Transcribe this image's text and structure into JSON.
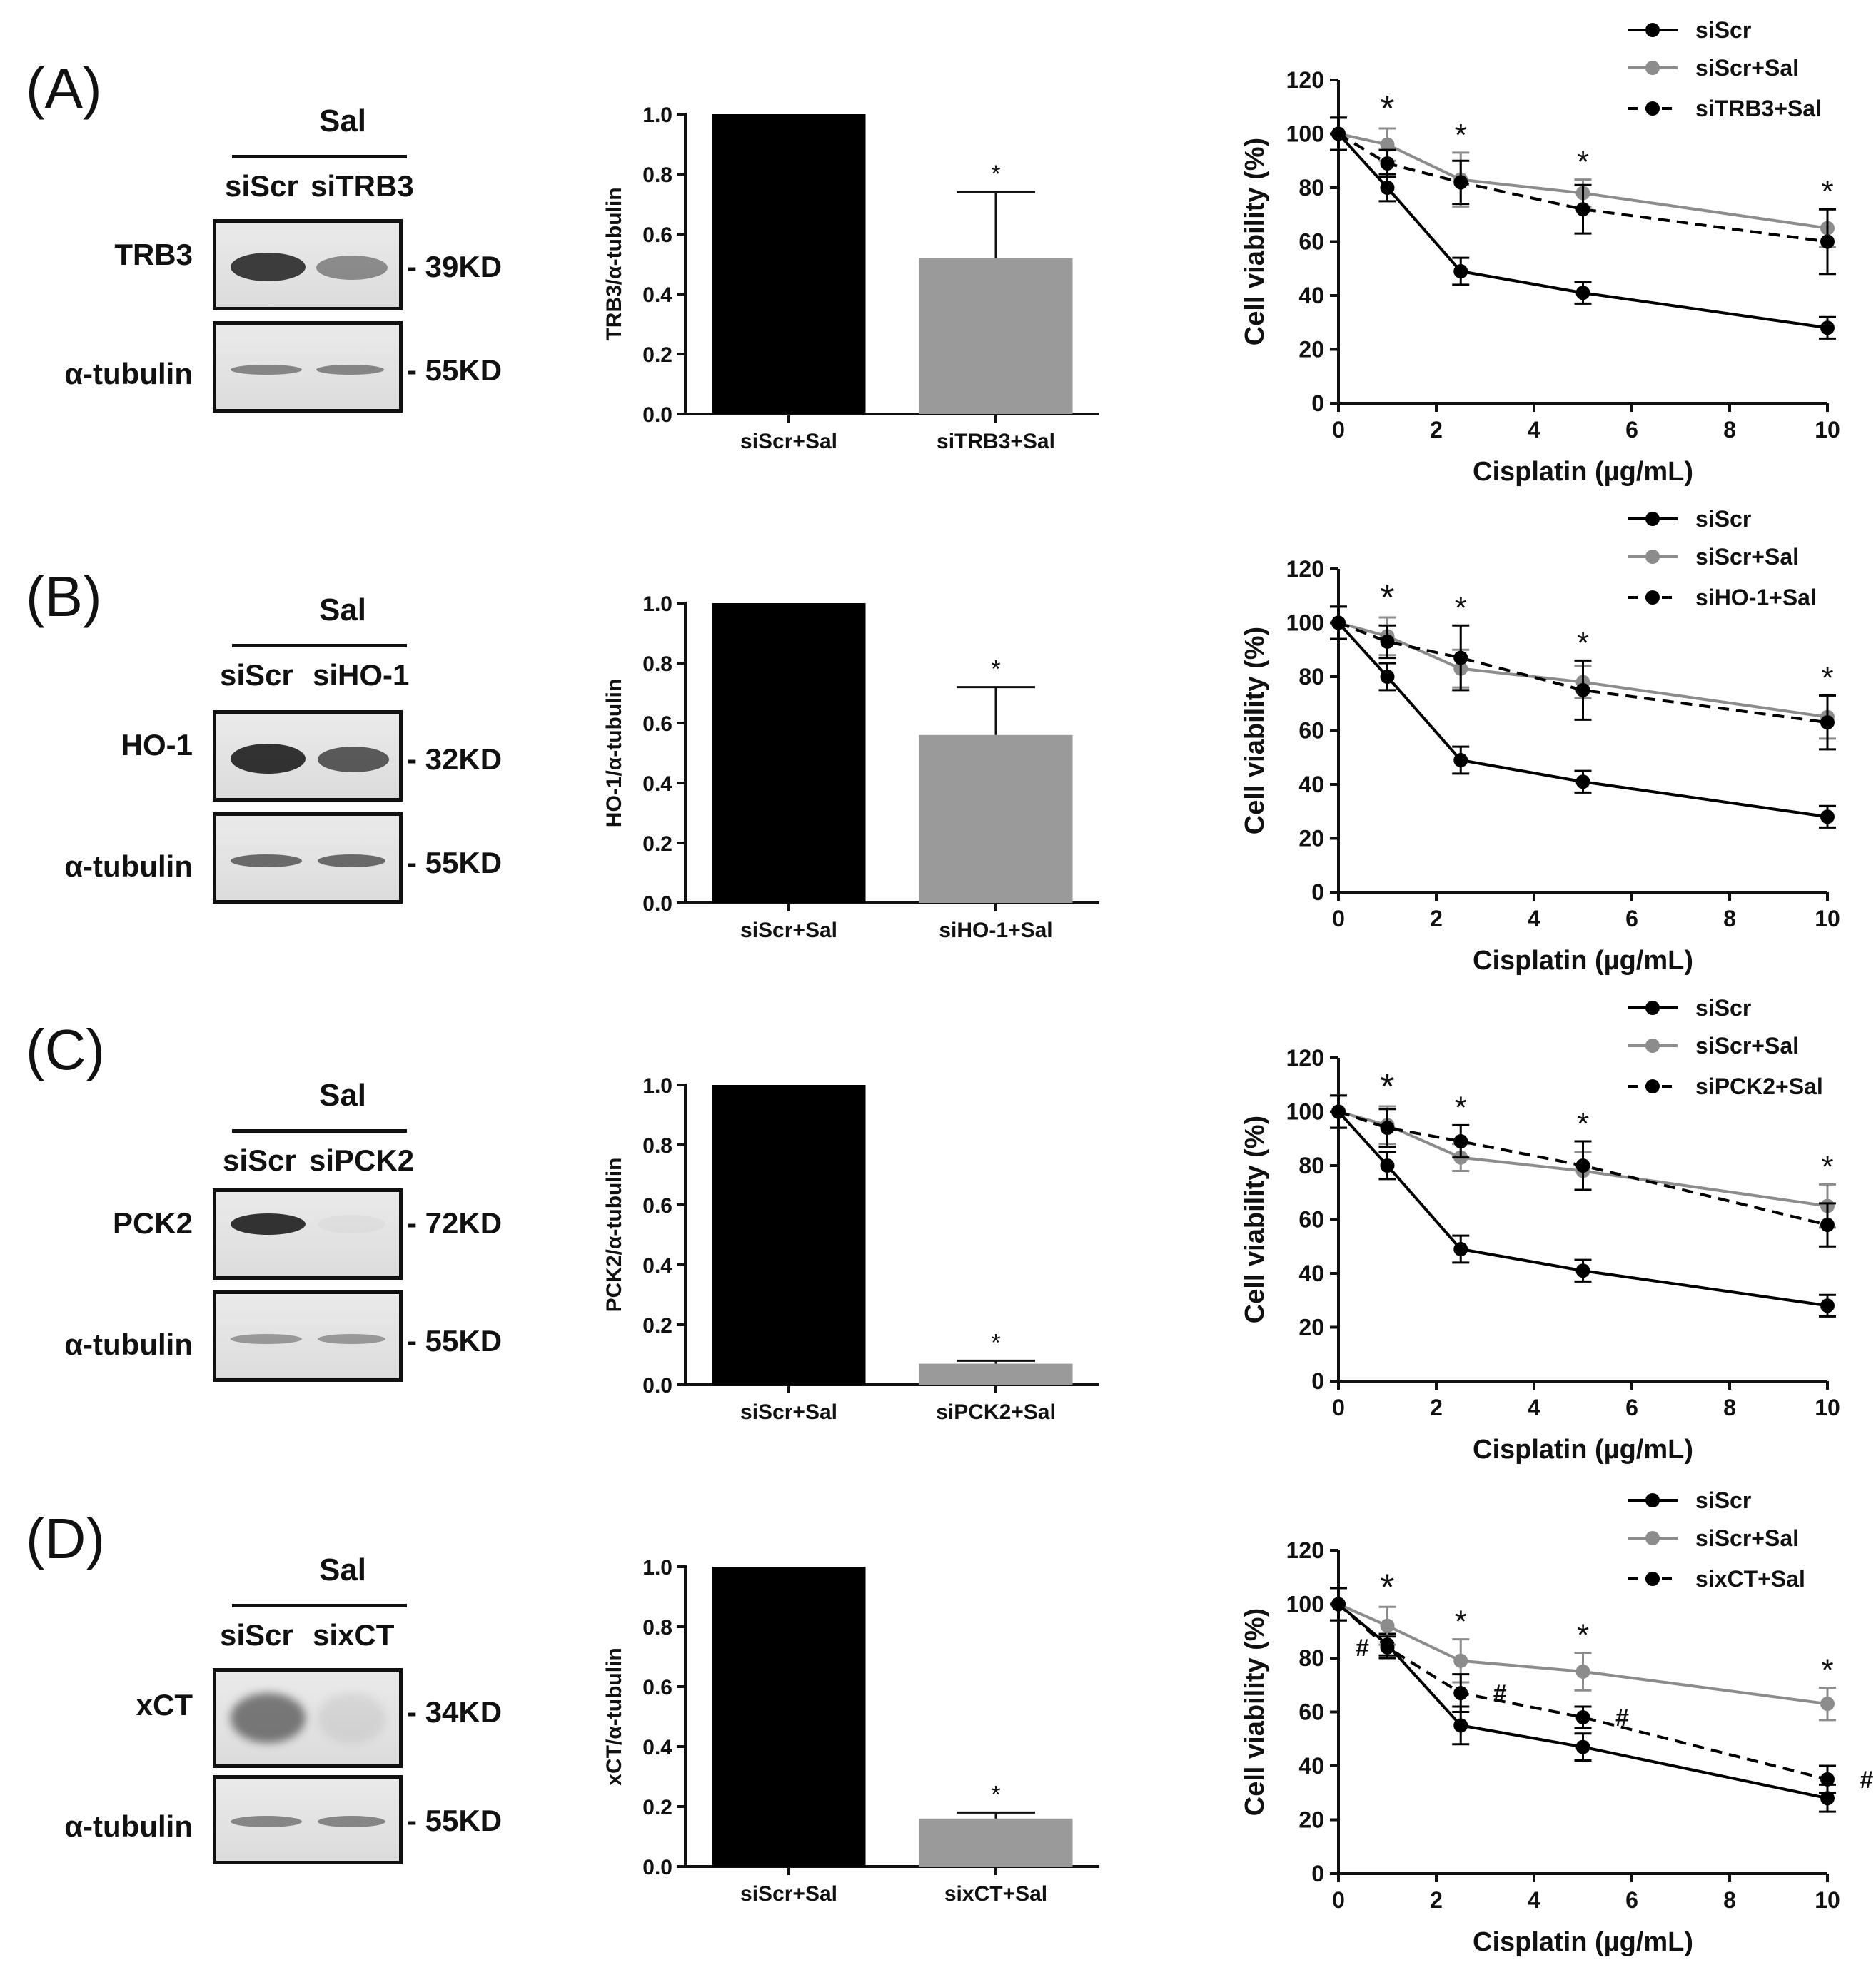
{
  "panels": [
    {
      "letter": "(A)",
      "sal": "Sal",
      "lane1": "siScr",
      "lane2": "siTRB3",
      "protein": "TRB3",
      "protein_kd": "- 39KD",
      "tubulin": "α-tubulin",
      "tubulin_kd": "- 55KD",
      "band_strength": [
        0.85,
        0.45
      ]
    },
    {
      "letter": "(B)",
      "sal": "Sal",
      "lane1": "siScr",
      "lane2": "siHO-1",
      "protein": "HO-1",
      "protein_kd": "- 32KD",
      "tubulin": "α-tubulin",
      "tubulin_kd": "- 55KD",
      "band_strength": [
        0.9,
        0.7
      ]
    },
    {
      "letter": "(C)",
      "sal": "Sal",
      "lane1": "siScr",
      "lane2": "siPCK2",
      "protein": "PCK2",
      "protein_kd": "- 72KD",
      "tubulin": "α-tubulin",
      "tubulin_kd": "- 55KD",
      "band_strength": [
        0.9,
        0.03
      ]
    },
    {
      "letter": "(D)",
      "sal": "Sal",
      "lane1": "siScr",
      "lane2": "sixCT",
      "protein": "xCT",
      "protein_kd": "- 34KD",
      "tubulin": "α-tubulin",
      "tubulin_kd": "- 55KD",
      "band_strength": [
        0.55,
        0.08
      ]
    }
  ],
  "chart_data": [
    {
      "type": "bar",
      "panel": "A",
      "ylabel": "TRB3/α-tubulin",
      "categories": [
        "siScr+Sal",
        "siTRB3+Sal"
      ],
      "values": [
        1.0,
        0.52
      ],
      "errors": [
        0,
        0.22
      ],
      "ylim": [
        0,
        1.0
      ],
      "yticks": [
        "0.0",
        "0.2",
        "0.4",
        "0.6",
        "0.8",
        "1.0"
      ],
      "annotations": [
        "",
        "*"
      ],
      "colors": [
        "#000000",
        "#9a9a9a"
      ]
    },
    {
      "type": "line",
      "panel": "A",
      "xlabel": "Cisplatin (µg/mL)",
      "ylabel": "Cell viability (%)",
      "x": [
        0,
        1,
        2.5,
        5,
        10
      ],
      "xlim": [
        0,
        10
      ],
      "ylim": [
        0,
        120
      ],
      "xticks": [
        "0",
        "2",
        "4",
        "6",
        "8",
        "10"
      ],
      "yticks": [
        "0",
        "20",
        "40",
        "60",
        "80",
        "100",
        "120"
      ],
      "series": [
        {
          "name": "siScr",
          "values": [
            100,
            80,
            49,
            41,
            28
          ],
          "errors": [
            6,
            5,
            5,
            4,
            4
          ],
          "color": "#000000",
          "dashed": false
        },
        {
          "name": "siScr+Sal",
          "values": [
            100,
            96,
            83,
            78,
            65
          ],
          "errors": [
            6,
            6,
            10,
            5,
            7
          ],
          "color": "#8c8c8c",
          "dashed": false
        },
        {
          "name": "siTRB3+Sal",
          "values": [
            100,
            89,
            82,
            72,
            60
          ],
          "errors": [
            6,
            5,
            8,
            9,
            12
          ],
          "color": "#000000",
          "dashed": true
        }
      ],
      "stars": [
        "*",
        "*",
        "*",
        "*"
      ],
      "hashes": []
    },
    {
      "type": "bar",
      "panel": "B",
      "ylabel": "HO-1/α-tubulin",
      "categories": [
        "siScr+Sal",
        "siHO-1+Sal"
      ],
      "values": [
        1.0,
        0.56
      ],
      "errors": [
        0,
        0.16
      ],
      "ylim": [
        0,
        1.0
      ],
      "yticks": [
        "0.0",
        "0.2",
        "0.4",
        "0.6",
        "0.8",
        "1.0"
      ],
      "annotations": [
        "",
        "*"
      ],
      "colors": [
        "#000000",
        "#9a9a9a"
      ]
    },
    {
      "type": "line",
      "panel": "B",
      "xlabel": "Cisplatin (µg/mL)",
      "ylabel": "Cell viability (%)",
      "x": [
        0,
        1,
        2.5,
        5,
        10
      ],
      "xlim": [
        0,
        10
      ],
      "ylim": [
        0,
        120
      ],
      "xticks": [
        "0",
        "2",
        "4",
        "6",
        "8",
        "10"
      ],
      "yticks": [
        "0",
        "20",
        "40",
        "60",
        "80",
        "100",
        "120"
      ],
      "series": [
        {
          "name": "siScr",
          "values": [
            100,
            80,
            49,
            41,
            28
          ],
          "errors": [
            6,
            5,
            5,
            4,
            4
          ],
          "color": "#000000",
          "dashed": false
        },
        {
          "name": "siScr+Sal",
          "values": [
            100,
            95,
            83,
            78,
            65
          ],
          "errors": [
            6,
            7,
            7,
            6,
            8
          ],
          "color": "#8c8c8c",
          "dashed": false
        },
        {
          "name": "siHO-1+Sal",
          "values": [
            100,
            93,
            87,
            75,
            63
          ],
          "errors": [
            6,
            6,
            12,
            11,
            10
          ],
          "color": "#000000",
          "dashed": true
        }
      ],
      "stars": [
        "*",
        "*",
        "*",
        "*"
      ],
      "hashes": []
    },
    {
      "type": "bar",
      "panel": "C",
      "ylabel": "PCK2/α-tubulin",
      "categories": [
        "siScr+Sal",
        "siPCK2+Sal"
      ],
      "values": [
        1.0,
        0.07
      ],
      "errors": [
        0,
        0.01
      ],
      "ylim": [
        0,
        1.0
      ],
      "yticks": [
        "0.0",
        "0.2",
        "0.4",
        "0.6",
        "0.8",
        "1.0"
      ],
      "annotations": [
        "",
        "*"
      ],
      "colors": [
        "#000000",
        "#9a9a9a"
      ]
    },
    {
      "type": "line",
      "panel": "C",
      "xlabel": "Cisplatin (µg/mL)",
      "ylabel": "Cell viability (%)",
      "x": [
        0,
        1,
        2.5,
        5,
        10
      ],
      "xlim": [
        0,
        10
      ],
      "ylim": [
        0,
        120
      ],
      "xticks": [
        "0",
        "2",
        "4",
        "6",
        "8",
        "10"
      ],
      "yticks": [
        "0",
        "20",
        "40",
        "60",
        "80",
        "100",
        "120"
      ],
      "series": [
        {
          "name": "siScr",
          "values": [
            100,
            80,
            49,
            41,
            28
          ],
          "errors": [
            6,
            5,
            5,
            4,
            4
          ],
          "color": "#000000",
          "dashed": false
        },
        {
          "name": "siScr+Sal",
          "values": [
            100,
            95,
            83,
            78,
            65
          ],
          "errors": [
            6,
            7,
            5,
            7,
            8
          ],
          "color": "#8c8c8c",
          "dashed": false
        },
        {
          "name": "siPCK2+Sal",
          "values": [
            100,
            94,
            89,
            80,
            58
          ],
          "errors": [
            6,
            7,
            6,
            9,
            8
          ],
          "color": "#000000",
          "dashed": true
        }
      ],
      "stars": [
        "*",
        "*",
        "*",
        "*"
      ],
      "hashes": []
    },
    {
      "type": "bar",
      "panel": "D",
      "ylabel": "xCT/α-tubulin",
      "categories": [
        "siScr+Sal",
        "sixCT+Sal"
      ],
      "values": [
        1.0,
        0.16
      ],
      "errors": [
        0,
        0.02
      ],
      "ylim": [
        0,
        1.0
      ],
      "yticks": [
        "0.0",
        "0.2",
        "0.4",
        "0.6",
        "0.8",
        "1.0"
      ],
      "annotations": [
        "",
        "*"
      ],
      "colors": [
        "#000000",
        "#9a9a9a"
      ]
    },
    {
      "type": "line",
      "panel": "D",
      "xlabel": "Cisplatin (µg/mL)",
      "ylabel": "Cell viability (%)",
      "x": [
        0,
        1,
        2.5,
        5,
        10
      ],
      "xlim": [
        0,
        10
      ],
      "ylim": [
        0,
        120
      ],
      "xticks": [
        "0",
        "2",
        "4",
        "6",
        "8",
        "10"
      ],
      "yticks": [
        "0",
        "20",
        "40",
        "60",
        "80",
        "100",
        "120"
      ],
      "series": [
        {
          "name": "siScr",
          "values": [
            100,
            85,
            55,
            47,
            28
          ],
          "errors": [
            6,
            4,
            7,
            5,
            5
          ],
          "color": "#000000",
          "dashed": false
        },
        {
          "name": "siScr+Sal",
          "values": [
            100,
            92,
            79,
            75,
            63
          ],
          "errors": [
            6,
            7,
            8,
            7,
            6
          ],
          "color": "#8c8c8c",
          "dashed": false
        },
        {
          "name": "sixCT+Sal",
          "values": [
            100,
            84,
            67,
            58,
            35
          ],
          "errors": [
            6,
            4,
            7,
            4,
            5
          ],
          "color": "#000000",
          "dashed": true
        }
      ],
      "stars": [
        "*",
        "*",
        "*",
        "*"
      ],
      "hashes": [
        "#",
        "#",
        "#",
        "#"
      ]
    }
  ]
}
